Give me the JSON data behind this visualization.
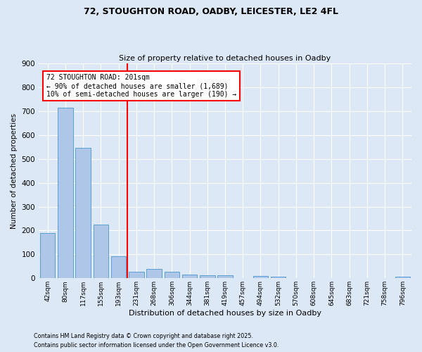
{
  "title1": "72, STOUGHTON ROAD, OADBY, LEICESTER, LE2 4FL",
  "title2": "Size of property relative to detached houses in Oadby",
  "xlabel": "Distribution of detached houses by size in Oadby",
  "ylabel": "Number of detached properties",
  "categories": [
    "42sqm",
    "80sqm",
    "117sqm",
    "155sqm",
    "193sqm",
    "231sqm",
    "268sqm",
    "306sqm",
    "344sqm",
    "381sqm",
    "419sqm",
    "457sqm",
    "494sqm",
    "532sqm",
    "570sqm",
    "608sqm",
    "645sqm",
    "683sqm",
    "721sqm",
    "758sqm",
    "796sqm"
  ],
  "values": [
    190,
    715,
    547,
    224,
    93,
    28,
    38,
    26,
    15,
    12,
    13,
    0,
    10,
    8,
    0,
    0,
    0,
    0,
    0,
    0,
    8
  ],
  "bar_color": "#aec6e8",
  "bar_edge_color": "#5a9fd4",
  "vline_x": 4.5,
  "vline_color": "red",
  "annotation_text": "72 STOUGHTON ROAD: 201sqm\n← 90% of detached houses are smaller (1,689)\n10% of semi-detached houses are larger (190) →",
  "annotation_box_color": "white",
  "annotation_box_edge": "red",
  "footer1": "Contains HM Land Registry data © Crown copyright and database right 2025.",
  "footer2": "Contains public sector information licensed under the Open Government Licence v3.0.",
  "background_color": "#dce8f5",
  "plot_bg_color": "#dce8f5",
  "ylim": [
    0,
    900
  ],
  "yticks": [
    0,
    100,
    200,
    300,
    400,
    500,
    600,
    700,
    800,
    900
  ]
}
